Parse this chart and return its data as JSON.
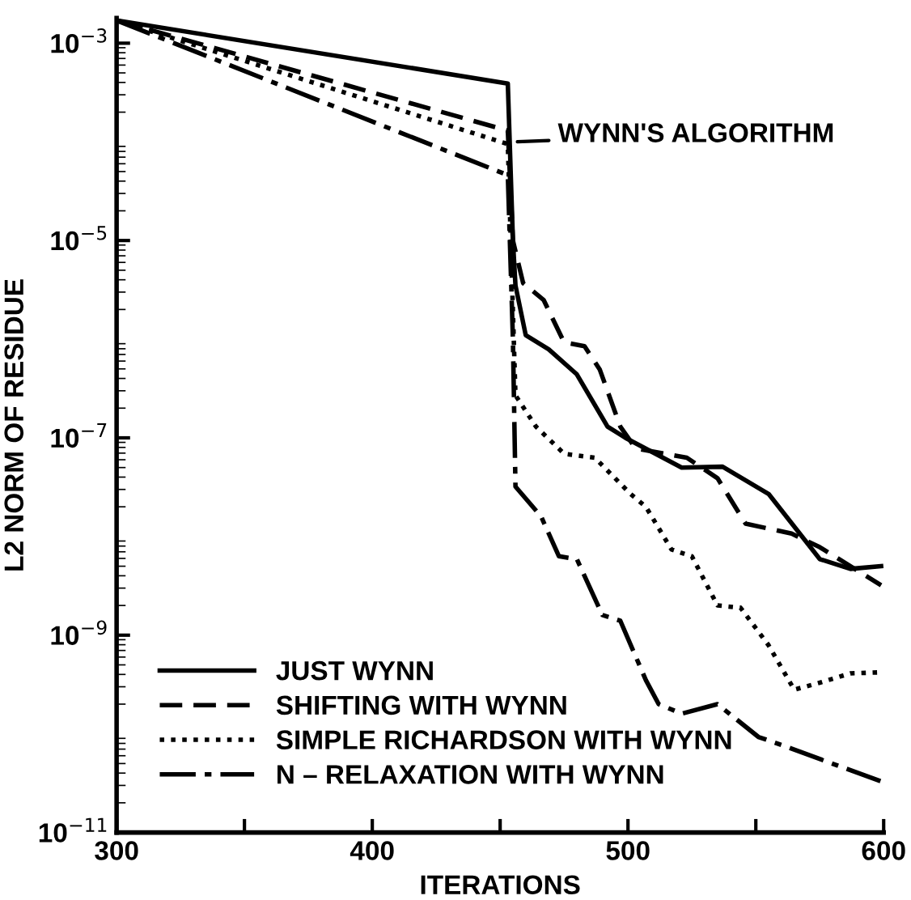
{
  "chart_data": {
    "type": "line",
    "xlabel": "ITERATIONS",
    "ylabel": "L2 NORM OF RESIDUE",
    "log": "y",
    "xlim": [
      300,
      600
    ],
    "xticks": [
      300,
      {
        "value": 350,
        "label": null
      },
      400,
      {
        "value": 450,
        "label": null
      },
      500,
      {
        "value": 550,
        "label": null
      },
      600
    ],
    "ylim": [
      1e-11,
      0.0018
    ],
    "yticks": [
      {
        "value": 0.001,
        "label": "10$^{−3}$"
      },
      {
        "value": 1e-05,
        "label": "10$^{−5}$"
      },
      {
        "value": 1e-07,
        "label": "10$^{−7}$"
      },
      {
        "value": 1e-09,
        "label": "10$^{−9}$"
      },
      {
        "value": 1e-11,
        "label": "10$^{−11}$"
      }
    ],
    "grid": false,
    "legend": "bottom left",
    "marker": "none",
    "annotations": [
      {
        "text": "WYNN'S ALGORITHM",
        "x": 455,
        "y": 0.0001
      }
    ],
    "series": [
      {
        "name": "JUST WYNN",
        "color": "#000000",
        "line_style": "solid",
        "x": [
          300,
          453,
          455,
          456,
          460,
          469,
          480,
          492,
          499,
          521,
          537,
          555,
          575,
          587,
          599
        ],
        "values": [
          0.0017,
          0.00039,
          1e-05,
          3.5e-06,
          1.1e-06,
          7.9e-07,
          4.4e-07,
          1.3e-07,
          1e-07,
          5e-08,
          5.1e-08,
          2.7e-08,
          5.9e-09,
          4.7e-09,
          5e-09
        ]
      },
      {
        "name": "SHIFTING WITH WYNN",
        "color": "#000000",
        "line_style": "dashed",
        "x": [
          300,
          453,
          455,
          459,
          467,
          475,
          483,
          489,
          497,
          503,
          523,
          535,
          546,
          564,
          575,
          599
        ],
        "values": [
          0.0017,
          0.00013,
          1e-05,
          3.7e-06,
          2.5e-06,
          9.3e-07,
          8.5e-07,
          4.9e-07,
          1.3e-07,
          7.8e-08,
          6.3e-08,
          3.9e-08,
          1.35e-08,
          1.07e-08,
          7.8e-09,
          3.2e-09
        ]
      },
      {
        "name": "SIMPLE RICHARDSON WITH WYNN",
        "color": "#000000",
        "line_style": "dotted",
        "x": [
          300,
          453,
          456,
          464,
          475,
          487,
          501,
          507,
          517,
          525,
          535,
          544,
          555,
          565,
          575,
          587,
          599
        ],
        "values": [
          0.0017,
          9.5e-05,
          2.7e-07,
          1.3e-07,
          6.9e-08,
          6.3e-08,
          2.7e-08,
          2e-08,
          7.4e-09,
          6.3e-09,
          2e-09,
          1.9e-09,
          7.9e-10,
          2.8e-10,
          3.3e-10,
          4.1e-10,
          4.2e-10
        ]
      },
      {
        "name": "N – RELAXATION WITH WYNN",
        "color": "#000000",
        "line_style": "dashdot",
        "x": [
          300,
          453,
          455,
          456,
          466,
          473,
          480,
          490,
          497,
          507,
          512,
          521,
          535,
          551,
          562,
          578,
          599
        ],
        "values": [
          0.0017,
          4.6e-05,
          1e-06,
          3.2e-08,
          1.6e-08,
          6.3e-09,
          5.9e-09,
          1.6e-09,
          1.4e-09,
          3.5e-10,
          2e-10,
          1.6e-10,
          2e-10,
          9.3e-11,
          7.4e-11,
          5.2e-11,
          3.3e-11
        ]
      }
    ]
  }
}
